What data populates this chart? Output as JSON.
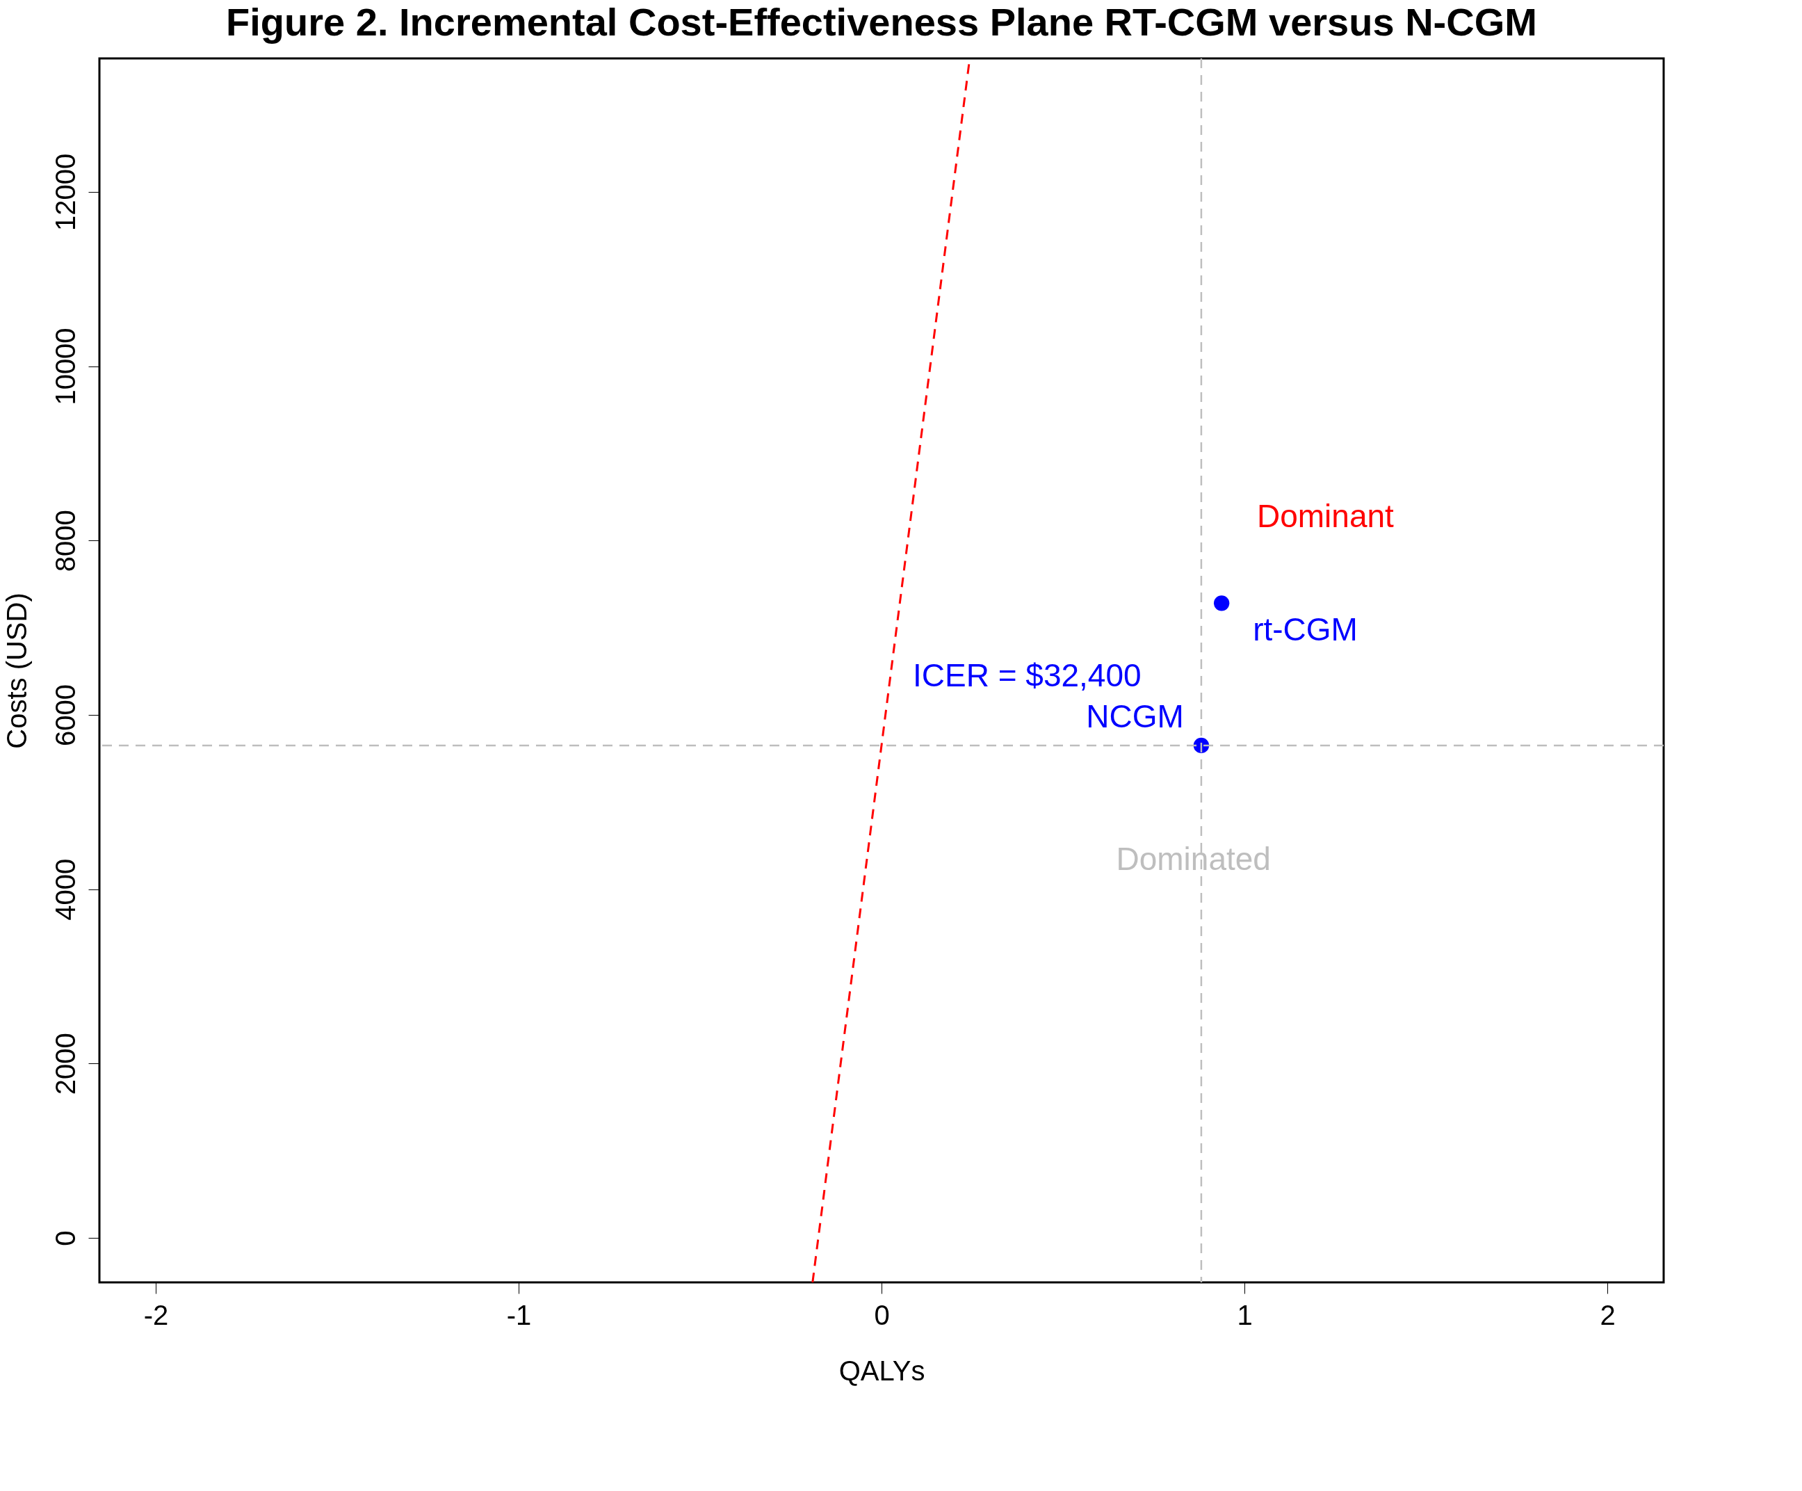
{
  "chart_data": {
    "type": "scatter",
    "title": "Figure 2. Incremental Cost-Effectiveness Plane RT-CGM versus N-CGM",
    "xlabel": "QALYs",
    "ylabel": "Costs (USD)",
    "xlim": [
      -2.155,
      2.155
    ],
    "ylim": [
      -510,
      13530
    ],
    "xticks": [
      -2,
      -1,
      0,
      1,
      2
    ],
    "yticks": [
      0,
      2000,
      4000,
      6000,
      8000,
      10000,
      12000
    ],
    "grid": false,
    "marker": "circle",
    "series": [
      {
        "name": "NCGM",
        "color": "#0000ff",
        "x": [
          0.881
        ],
        "values": [
          5649
        ]
      },
      {
        "name": "rt-CGM",
        "color": "#0000ff",
        "x": [
          0.937
        ],
        "values": [
          7281
        ]
      },
      {
        "type": "line",
        "marker": "none",
        "color": "#ff0000",
        "line_style": "dashed",
        "x": [
          -0.19,
          0.243
        ],
        "values": [
          -510,
          13530
        ]
      }
    ],
    "ref_lines": [
      {
        "axis": "x",
        "value": 0.881,
        "color": "#bebebe",
        "line_style": "dashed"
      },
      {
        "axis": "y",
        "value": 5649,
        "color": "#bebebe",
        "line_style": "dashed"
      }
    ],
    "annotations": [
      "Dominant",
      "ICER = $32,400",
      "Dominated"
    ]
  }
}
